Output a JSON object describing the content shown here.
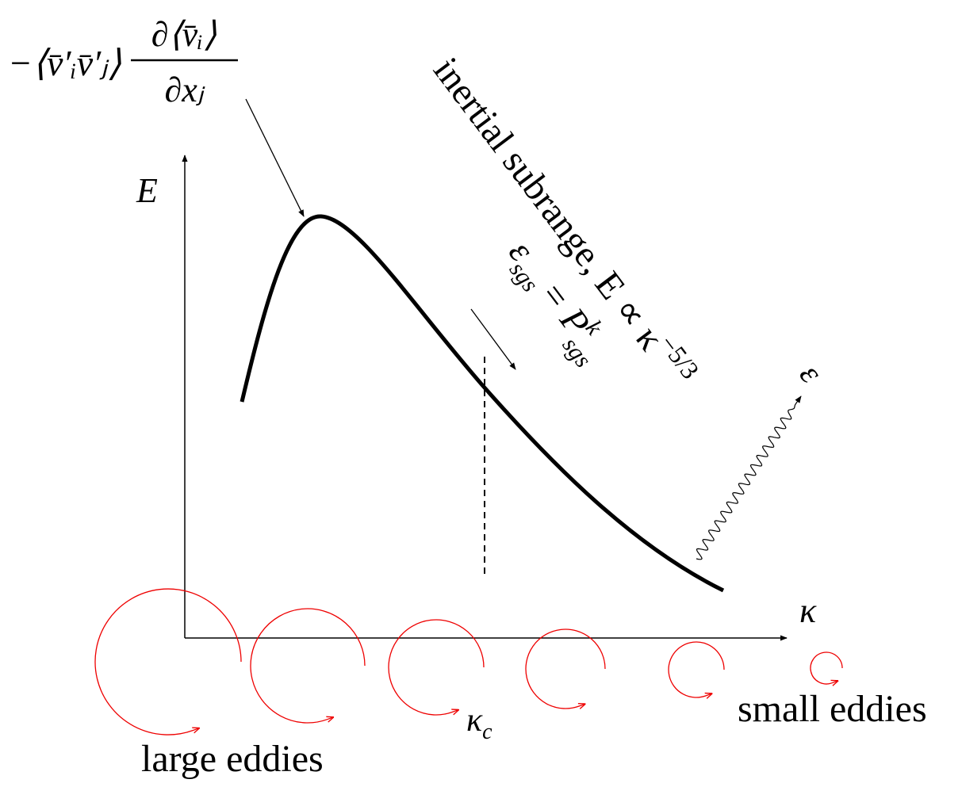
{
  "formula": {
    "prefix": "−⟨v̄′ᵢv̄′ⱼ⟩",
    "numerator": "∂⟨v̄ᵢ⟩",
    "denominator": "∂xⱼ"
  },
  "axes": {
    "y_label": "E",
    "x_label": "κ"
  },
  "inertial_subrange": {
    "text": "inertial subrange, E ∝ κ",
    "exponent": "−5/3"
  },
  "sgs": {
    "lhs": "ε",
    "lhs_sub": "sgs",
    "eq": "= P",
    "sup": "k",
    "sub": "sgs"
  },
  "epsilon": "ε",
  "kappa_c": {
    "base": "κ",
    "sub": "c"
  },
  "labels": {
    "large": "large eddies",
    "small": "small eddies"
  }
}
